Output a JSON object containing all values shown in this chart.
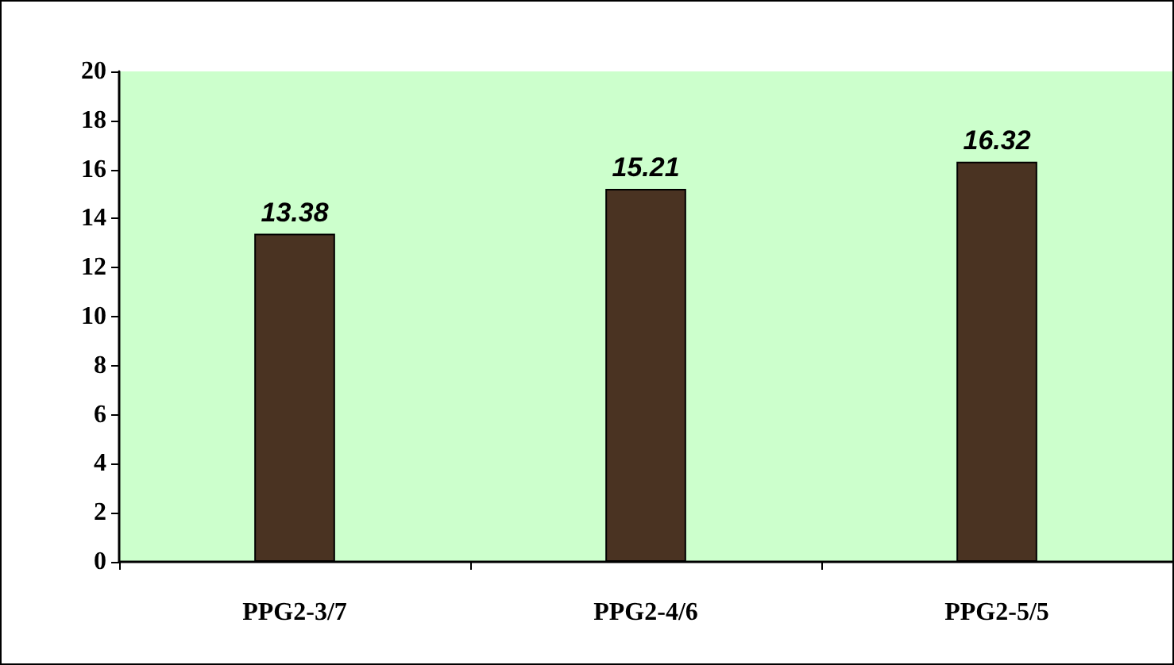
{
  "chart_data": {
    "type": "bar",
    "categories": [
      "PPG2-3/7",
      "PPG2-4/6",
      "PPG2-5/5"
    ],
    "values": [
      13.38,
      15.21,
      16.32
    ],
    "color": "#4a3322",
    "ylim": [
      0,
      20
    ],
    "yticks": [
      0,
      2,
      4,
      6,
      8,
      10,
      12,
      14,
      16,
      18,
      20
    ],
    "grid": false,
    "data_labels": true
  }
}
